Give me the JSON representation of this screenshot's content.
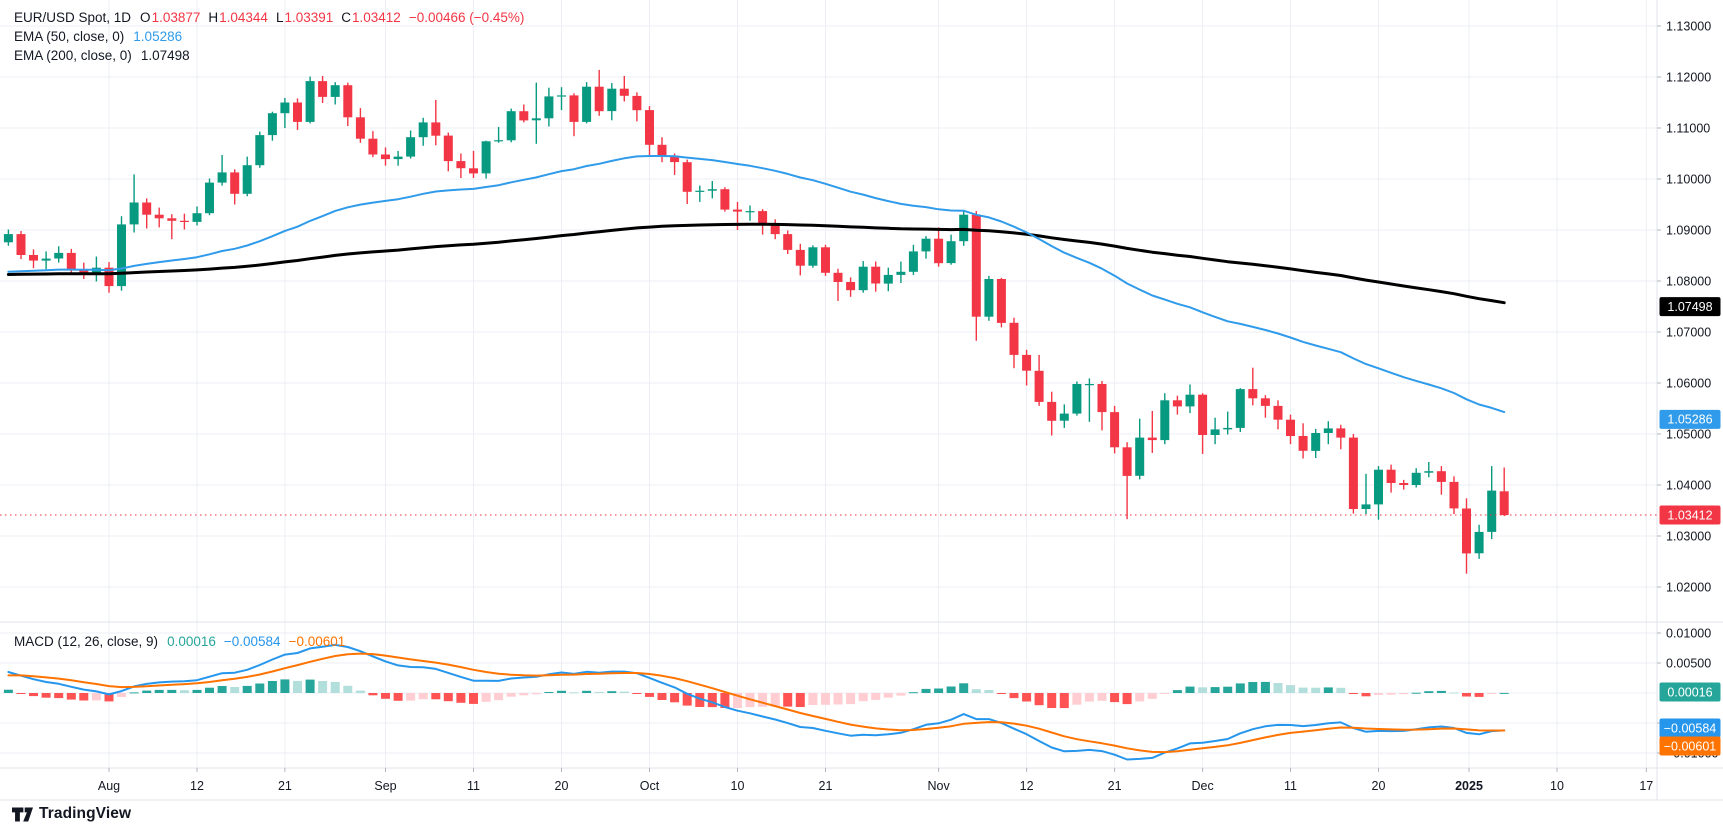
{
  "header": {
    "symbol_row": [
      {
        "t": "EUR/USD Spot, 1D",
        "c": "#131722",
        "k": "title"
      },
      {
        "t": "O",
        "c": "#131722",
        "k": "key"
      },
      {
        "t": "1.03877",
        "c": "#F23645",
        "k": "val"
      },
      {
        "t": "H",
        "c": "#131722",
        "k": "key"
      },
      {
        "t": "1.04344",
        "c": "#F23645",
        "k": "val"
      },
      {
        "t": "L",
        "c": "#131722",
        "k": "key"
      },
      {
        "t": "1.03391",
        "c": "#F23645",
        "k": "val"
      },
      {
        "t": "C",
        "c": "#131722",
        "k": "key"
      },
      {
        "t": "1.03412",
        "c": "#F23645",
        "k": "val"
      },
      {
        "t": "−0.00466 (−0.45%)",
        "c": "#F23645",
        "k": "chg"
      }
    ],
    "ema50_row": [
      {
        "t": "EMA (50, close, 0)",
        "c": "#131722",
        "k": "title"
      },
      {
        "t": "1.05286",
        "c": "#2F9BEA",
        "k": "val"
      }
    ],
    "ema200_row": [
      {
        "t": "EMA (200, close, 0)",
        "c": "#131722",
        "k": "title"
      },
      {
        "t": "1.07498",
        "c": "#131722",
        "k": "val"
      }
    ],
    "macd_row": [
      {
        "t": "MACD (12, 26, close, 9)",
        "c": "#131722",
        "k": "title"
      },
      {
        "t": "0.00016",
        "c": "#26A69A",
        "k": "val"
      },
      {
        "t": "−0.00584",
        "c": "#2596EC",
        "k": "val"
      },
      {
        "t": "−0.00601",
        "c": "#FF7300",
        "k": "val"
      }
    ]
  },
  "footer": {
    "brand": "TradingView"
  },
  "chart_data": {
    "type": "candlestick",
    "title": "EUR/USD Spot, 1D",
    "interval": "1D",
    "last_ohlc": {
      "open": 1.03877,
      "high": 1.04344,
      "low": 1.03391,
      "close": 1.03412,
      "change": "−0.00466",
      "change_pct": "−0.45%"
    },
    "price_range_visible": [
      1.0131,
      1.1351
    ],
    "macd_range_visible": [
      -0.0125,
      0.01183
    ],
    "grid": true,
    "dates": [
      "2024-07-22",
      "2024-07-23",
      "2024-07-24",
      "2024-07-25",
      "2024-07-26",
      "2024-07-29",
      "2024-07-30",
      "2024-07-31",
      "2024-08-01",
      "2024-08-02",
      "2024-08-05",
      "2024-08-06",
      "2024-08-07",
      "2024-08-08",
      "2024-08-09",
      "2024-08-12",
      "2024-08-13",
      "2024-08-14",
      "2024-08-15",
      "2024-08-16",
      "2024-08-19",
      "2024-08-20",
      "2024-08-21",
      "2024-08-22",
      "2024-08-23",
      "2024-08-26",
      "2024-08-27",
      "2024-08-28",
      "2024-08-29",
      "2024-08-30",
      "2024-09-02",
      "2024-09-03",
      "2024-09-04",
      "2024-09-05",
      "2024-09-06",
      "2024-09-09",
      "2024-09-10",
      "2024-09-11",
      "2024-09-12",
      "2024-09-13",
      "2024-09-16",
      "2024-09-17",
      "2024-09-18",
      "2024-09-19",
      "2024-09-20",
      "2024-09-23",
      "2024-09-24",
      "2024-09-25",
      "2024-09-26",
      "2024-09-27",
      "2024-09-30",
      "2024-10-01",
      "2024-10-02",
      "2024-10-03",
      "2024-10-04",
      "2024-10-07",
      "2024-10-08",
      "2024-10-09",
      "2024-10-10",
      "2024-10-11",
      "2024-10-14",
      "2024-10-15",
      "2024-10-16",
      "2024-10-17",
      "2024-10-18",
      "2024-10-21",
      "2024-10-22",
      "2024-10-23",
      "2024-10-24",
      "2024-10-25",
      "2024-10-28",
      "2024-10-29",
      "2024-10-30",
      "2024-10-31",
      "2024-11-01",
      "2024-11-04",
      "2024-11-05",
      "2024-11-06",
      "2024-11-07",
      "2024-11-08",
      "2024-11-11",
      "2024-11-12",
      "2024-11-13",
      "2024-11-14",
      "2024-11-15",
      "2024-11-18",
      "2024-11-19",
      "2024-11-20",
      "2024-11-21",
      "2024-11-22",
      "2024-11-25",
      "2024-11-26",
      "2024-11-27",
      "2024-11-28",
      "2024-11-29",
      "2024-12-02",
      "2024-12-03",
      "2024-12-04",
      "2024-12-05",
      "2024-12-06",
      "2024-12-09",
      "2024-12-10",
      "2024-12-11",
      "2024-12-12",
      "2024-12-13",
      "2024-12-16",
      "2024-12-17",
      "2024-12-18",
      "2024-12-19",
      "2024-12-20",
      "2024-12-23",
      "2024-12-24",
      "2024-12-26",
      "2024-12-27",
      "2024-12-30",
      "2024-12-31",
      "2025-01-02",
      "2025-01-03",
      "2025-01-06",
      "2025-01-07"
    ],
    "ohlc": [
      [
        1.0876,
        1.0901,
        1.0869,
        1.0892
      ],
      [
        1.0892,
        1.0898,
        1.0843,
        1.0851
      ],
      [
        1.0851,
        1.0862,
        1.0825,
        1.084
      ],
      [
        1.084,
        1.0858,
        1.0823,
        1.0844
      ],
      [
        1.0844,
        1.0868,
        1.0836,
        1.0855
      ],
      [
        1.0855,
        1.0863,
        1.0814,
        1.0822
      ],
      [
        1.0822,
        1.0836,
        1.0804,
        1.0815
      ],
      [
        1.0815,
        1.0848,
        1.0799,
        1.0826
      ],
      [
        1.0826,
        1.0837,
        1.0777,
        1.079
      ],
      [
        1.079,
        1.0927,
        1.0781,
        1.0911
      ],
      [
        1.0911,
        1.1009,
        1.0895,
        1.0954
      ],
      [
        1.0954,
        1.0962,
        1.0903,
        1.093
      ],
      [
        1.093,
        1.0944,
        1.0905,
        1.0923
      ],
      [
        1.0923,
        1.0931,
        1.0882,
        1.0918
      ],
      [
        1.0918,
        1.0932,
        1.0901,
        1.0916
      ],
      [
        1.0916,
        1.0946,
        1.0909,
        1.0933
      ],
      [
        1.0933,
        1.1001,
        1.0929,
        1.0993
      ],
      [
        1.0993,
        1.1047,
        1.0987,
        1.1013
      ],
      [
        1.1013,
        1.1019,
        1.095,
        1.0971
      ],
      [
        1.0971,
        1.1044,
        1.0966,
        1.1027
      ],
      [
        1.1027,
        1.1093,
        1.1022,
        1.1086
      ],
      [
        1.1086,
        1.1132,
        1.1075,
        1.1129
      ],
      [
        1.1129,
        1.1159,
        1.11,
        1.115
      ],
      [
        1.115,
        1.1158,
        1.1096,
        1.1112
      ],
      [
        1.1112,
        1.1201,
        1.1109,
        1.1192
      ],
      [
        1.1192,
        1.1202,
        1.1149,
        1.1161
      ],
      [
        1.1161,
        1.119,
        1.1146,
        1.1184
      ],
      [
        1.1184,
        1.1189,
        1.1104,
        1.1121
      ],
      [
        1.1121,
        1.1139,
        1.1071,
        1.1079
      ],
      [
        1.1079,
        1.1094,
        1.1043,
        1.1048
      ],
      [
        1.1048,
        1.1062,
        1.1026,
        1.1039
      ],
      [
        1.1039,
        1.1055,
        1.1026,
        1.1044
      ],
      [
        1.1044,
        1.1095,
        1.104,
        1.1082
      ],
      [
        1.1082,
        1.112,
        1.1065,
        1.1111
      ],
      [
        1.1111,
        1.1155,
        1.1066,
        1.1085
      ],
      [
        1.1085,
        1.1091,
        1.1015,
        1.1035
      ],
      [
        1.1035,
        1.105,
        1.1002,
        1.1021
      ],
      [
        1.1021,
        1.1055,
        1.1002,
        1.1011
      ],
      [
        1.1011,
        1.1075,
        1.1001,
        1.1074
      ],
      [
        1.1074,
        1.1102,
        1.1071,
        1.1076
      ],
      [
        1.1076,
        1.1138,
        1.1072,
        1.1133
      ],
      [
        1.1133,
        1.1146,
        1.1111,
        1.1115
      ],
      [
        1.1115,
        1.1189,
        1.1069,
        1.1119
      ],
      [
        1.1119,
        1.1179,
        1.1103,
        1.1162
      ],
      [
        1.1162,
        1.118,
        1.1135,
        1.1164
      ],
      [
        1.1164,
        1.1168,
        1.1084,
        1.1112
      ],
      [
        1.1112,
        1.119,
        1.1109,
        1.1181
      ],
      [
        1.1181,
        1.1214,
        1.1124,
        1.1133
      ],
      [
        1.1133,
        1.1188,
        1.1115,
        1.1177
      ],
      [
        1.1177,
        1.1202,
        1.1152,
        1.1163
      ],
      [
        1.1163,
        1.117,
        1.1113,
        1.1135
      ],
      [
        1.1135,
        1.1143,
        1.1046,
        1.1067
      ],
      [
        1.1067,
        1.1082,
        1.1033,
        1.1046
      ],
      [
        1.1046,
        1.105,
        1.1008,
        1.1033
      ],
      [
        1.1033,
        1.1038,
        1.0951,
        1.0975
      ],
      [
        1.0975,
        1.0987,
        1.0955,
        1.0977
      ],
      [
        1.0977,
        1.0996,
        1.0962,
        1.098
      ],
      [
        1.098,
        1.0984,
        1.0936,
        1.094
      ],
      [
        1.094,
        1.0955,
        1.09,
        1.0936
      ],
      [
        1.0936,
        1.0948,
        1.0918,
        1.0937
      ],
      [
        1.0937,
        1.0941,
        1.0891,
        1.0909
      ],
      [
        1.0909,
        1.0921,
        1.0882,
        1.0892
      ],
      [
        1.0892,
        1.0899,
        1.0853,
        1.0861
      ],
      [
        1.0861,
        1.0873,
        1.0811,
        1.083
      ],
      [
        1.083,
        1.087,
        1.0826,
        1.0866
      ],
      [
        1.0866,
        1.0871,
        1.081,
        1.0816
      ],
      [
        1.0816,
        1.0824,
        1.0761,
        1.0798
      ],
      [
        1.0798,
        1.0807,
        1.0769,
        1.0782
      ],
      [
        1.0782,
        1.0839,
        1.0777,
        1.0828
      ],
      [
        1.0828,
        1.0838,
        1.0779,
        1.0795
      ],
      [
        1.0795,
        1.0826,
        1.078,
        1.0812
      ],
      [
        1.0812,
        1.0838,
        1.0796,
        1.0818
      ],
      [
        1.0818,
        1.0871,
        1.0812,
        1.0858
      ],
      [
        1.0858,
        1.0888,
        1.0844,
        1.0883
      ],
      [
        1.0883,
        1.0905,
        1.0828,
        1.0835
      ],
      [
        1.0835,
        1.0891,
        1.0832,
        1.0878
      ],
      [
        1.0878,
        1.0937,
        1.0869,
        1.093
      ],
      [
        1.093,
        1.0937,
        1.0683,
        1.073
      ],
      [
        1.073,
        1.081,
        1.0722,
        1.0804
      ],
      [
        1.0804,
        1.0806,
        1.0709,
        1.0718
      ],
      [
        1.0718,
        1.0728,
        1.0629,
        1.0655
      ],
      [
        1.0655,
        1.0665,
        1.0595,
        1.0624
      ],
      [
        1.0624,
        1.0655,
        1.0555,
        1.0563
      ],
      [
        1.0563,
        1.0583,
        1.0497,
        1.0526
      ],
      [
        1.0526,
        1.0558,
        1.0512,
        1.054
      ],
      [
        1.054,
        1.0603,
        1.0536,
        1.0598
      ],
      [
        1.0598,
        1.0609,
        1.0524,
        1.0598
      ],
      [
        1.0598,
        1.0604,
        1.0507,
        1.0543
      ],
      [
        1.0543,
        1.0555,
        1.0462,
        1.0474
      ],
      [
        1.0474,
        1.0484,
        1.0333,
        1.0418
      ],
      [
        1.0418,
        1.053,
        1.0411,
        1.0493
      ],
      [
        1.0493,
        1.0545,
        1.0463,
        1.0488
      ],
      [
        1.0488,
        1.058,
        1.048,
        1.0566
      ],
      [
        1.0566,
        1.0575,
        1.0538,
        1.0554
      ],
      [
        1.0554,
        1.0597,
        1.0541,
        1.0577
      ],
      [
        1.0577,
        1.058,
        1.0461,
        1.0498
      ],
      [
        1.0498,
        1.0532,
        1.048,
        1.0509
      ],
      [
        1.0509,
        1.0544,
        1.0499,
        1.0512
      ],
      [
        1.0512,
        1.059,
        1.0504,
        1.0588
      ],
      [
        1.0588,
        1.063,
        1.0556,
        1.057
      ],
      [
        1.057,
        1.0576,
        1.0532,
        1.0555
      ],
      [
        1.0555,
        1.0566,
        1.0509,
        1.0528
      ],
      [
        1.0528,
        1.0538,
        1.048,
        1.0496
      ],
      [
        1.0496,
        1.0521,
        1.0452,
        1.0467
      ],
      [
        1.0467,
        1.051,
        1.0453,
        1.0502
      ],
      [
        1.0502,
        1.0525,
        1.048,
        1.0511
      ],
      [
        1.0511,
        1.0518,
        1.047,
        1.0493
      ],
      [
        1.0493,
        1.05,
        1.0344,
        1.0353
      ],
      [
        1.0353,
        1.0422,
        1.0343,
        1.0362
      ],
      [
        1.0362,
        1.0437,
        1.0332,
        1.043
      ],
      [
        1.043,
        1.044,
        1.0385,
        1.0404
      ],
      [
        1.0404,
        1.041,
        1.0391,
        1.04
      ],
      [
        1.04,
        1.0433,
        1.0395,
        1.0424
      ],
      [
        1.0424,
        1.0445,
        1.0415,
        1.0427
      ],
      [
        1.0427,
        1.0437,
        1.0381,
        1.0406
      ],
      [
        1.0406,
        1.0417,
        1.0343,
        1.0354
      ],
      [
        1.0354,
        1.0374,
        1.0226,
        1.0266
      ],
      [
        1.0266,
        1.0322,
        1.0255,
        1.0308
      ],
      [
        1.0308,
        1.0437,
        1.0294,
        1.0389
      ],
      [
        1.03877,
        1.04344,
        1.03391,
        1.03412
      ]
    ],
    "overlays": {
      "ema50": {
        "label": "EMA (50, close, 0)",
        "period": 50,
        "seed": 1.0815,
        "color": "#2F9BEA",
        "width": 2,
        "last_value": "1.05286"
      },
      "ema200": {
        "label": "EMA (200, close, 0)",
        "period": 200,
        "seed": 1.0812,
        "color": "#000000",
        "width": 3,
        "last_value": "1.07498"
      }
    },
    "macd": {
      "label": "MACD (12, 26, close, 9)",
      "fast": 12,
      "slow": 26,
      "signal_period": 9,
      "seed_fast": 1.0895,
      "seed_slow": 1.0857,
      "seed_signal": 0.0028,
      "macd_color": "#2596EC",
      "signal_color": "#FF7300",
      "hist_up_grow": "#26A69A",
      "hist_up_fall": "#B2DFDB",
      "hist_dn_fall": "#FF5252",
      "hist_dn_grow": "#FFCDD2",
      "last_macd": "−0.00584",
      "last_signal": "−0.00601",
      "last_hist": "0.00016"
    },
    "price_line": {
      "value": 1.03412,
      "label": "1.03412",
      "color": "#F23645",
      "style": "dotted"
    },
    "price_axis": {
      "ticks": [
        {
          "label": "1.13000",
          "value": 1.13
        },
        {
          "label": "1.12000",
          "value": 1.12
        },
        {
          "label": "1.11000",
          "value": 1.11
        },
        {
          "label": "1.10000",
          "value": 1.1
        },
        {
          "label": "1.09000",
          "value": 1.09
        },
        {
          "label": "1.08000",
          "value": 1.08
        },
        {
          "label": "1.07000",
          "value": 1.07
        },
        {
          "label": "1.06000",
          "value": 1.06
        },
        {
          "label": "1.05000",
          "value": 1.05
        },
        {
          "label": "1.04000",
          "value": 1.04
        },
        {
          "label": "1.03000",
          "value": 1.03
        },
        {
          "label": "1.02000",
          "value": 1.02
        }
      ],
      "badges": [
        {
          "label": "1.07498",
          "value": 1.07498,
          "bg": "#000000",
          "fg": "#ffffff"
        },
        {
          "label": "1.05286",
          "value": 1.05286,
          "bg": "#2F9BEA",
          "fg": "#ffffff"
        },
        {
          "label": "1.03412",
          "value": 1.03412,
          "bg": "#F23645",
          "fg": "#ffffff"
        }
      ]
    },
    "macd_axis": {
      "ticks": [
        {
          "label": "0.01000",
          "value": 0.01
        },
        {
          "label": "0.00500",
          "value": 0.005
        },
        {
          "label": "−0.00500",
          "value": -0.005
        },
        {
          "label": "−0.01000",
          "value": -0.01
        }
      ],
      "badges": [
        {
          "label": "0.00016",
          "value": 0.00016,
          "bg": "#26A69A",
          "fg": "#ffffff"
        },
        {
          "label": "−0.00584",
          "value": -0.00584,
          "bg": "#2596EC",
          "fg": "#ffffff"
        },
        {
          "label": "−0.00601",
          "value": -0.00601,
          "bg": "#FF7300",
          "fg": "#ffffff"
        }
      ]
    },
    "time_axis": {
      "ticks": [
        {
          "label": "Aug",
          "i": 8
        },
        {
          "label": "12",
          "i": 15
        },
        {
          "label": "21",
          "i": 22
        },
        {
          "label": "Sep",
          "i": 30
        },
        {
          "label": "11",
          "i": 37
        },
        {
          "label": "20",
          "i": 44
        },
        {
          "label": "Oct",
          "i": 51
        },
        {
          "label": "10",
          "i": 58
        },
        {
          "label": "21",
          "i": 65
        },
        {
          "label": "Nov",
          "i": 74
        },
        {
          "label": "12",
          "i": 81
        },
        {
          "label": "21",
          "i": 88
        },
        {
          "label": "Dec",
          "i": 95
        },
        {
          "label": "11",
          "i": 102
        },
        {
          "label": "20",
          "i": 109
        },
        {
          "label": "2025",
          "i": 116.2,
          "bold": true
        },
        {
          "label": "10",
          "i": 123.2
        },
        {
          "label": "17",
          "i": 130.3
        }
      ]
    },
    "colors": {
      "up": "#089981",
      "down": "#F23645",
      "grid": "#EDEFF4",
      "separator": "#E0E3EB",
      "axis_text": "#131722",
      "tick_mark": "#B2B5BE",
      "background": "#ffffff"
    }
  }
}
